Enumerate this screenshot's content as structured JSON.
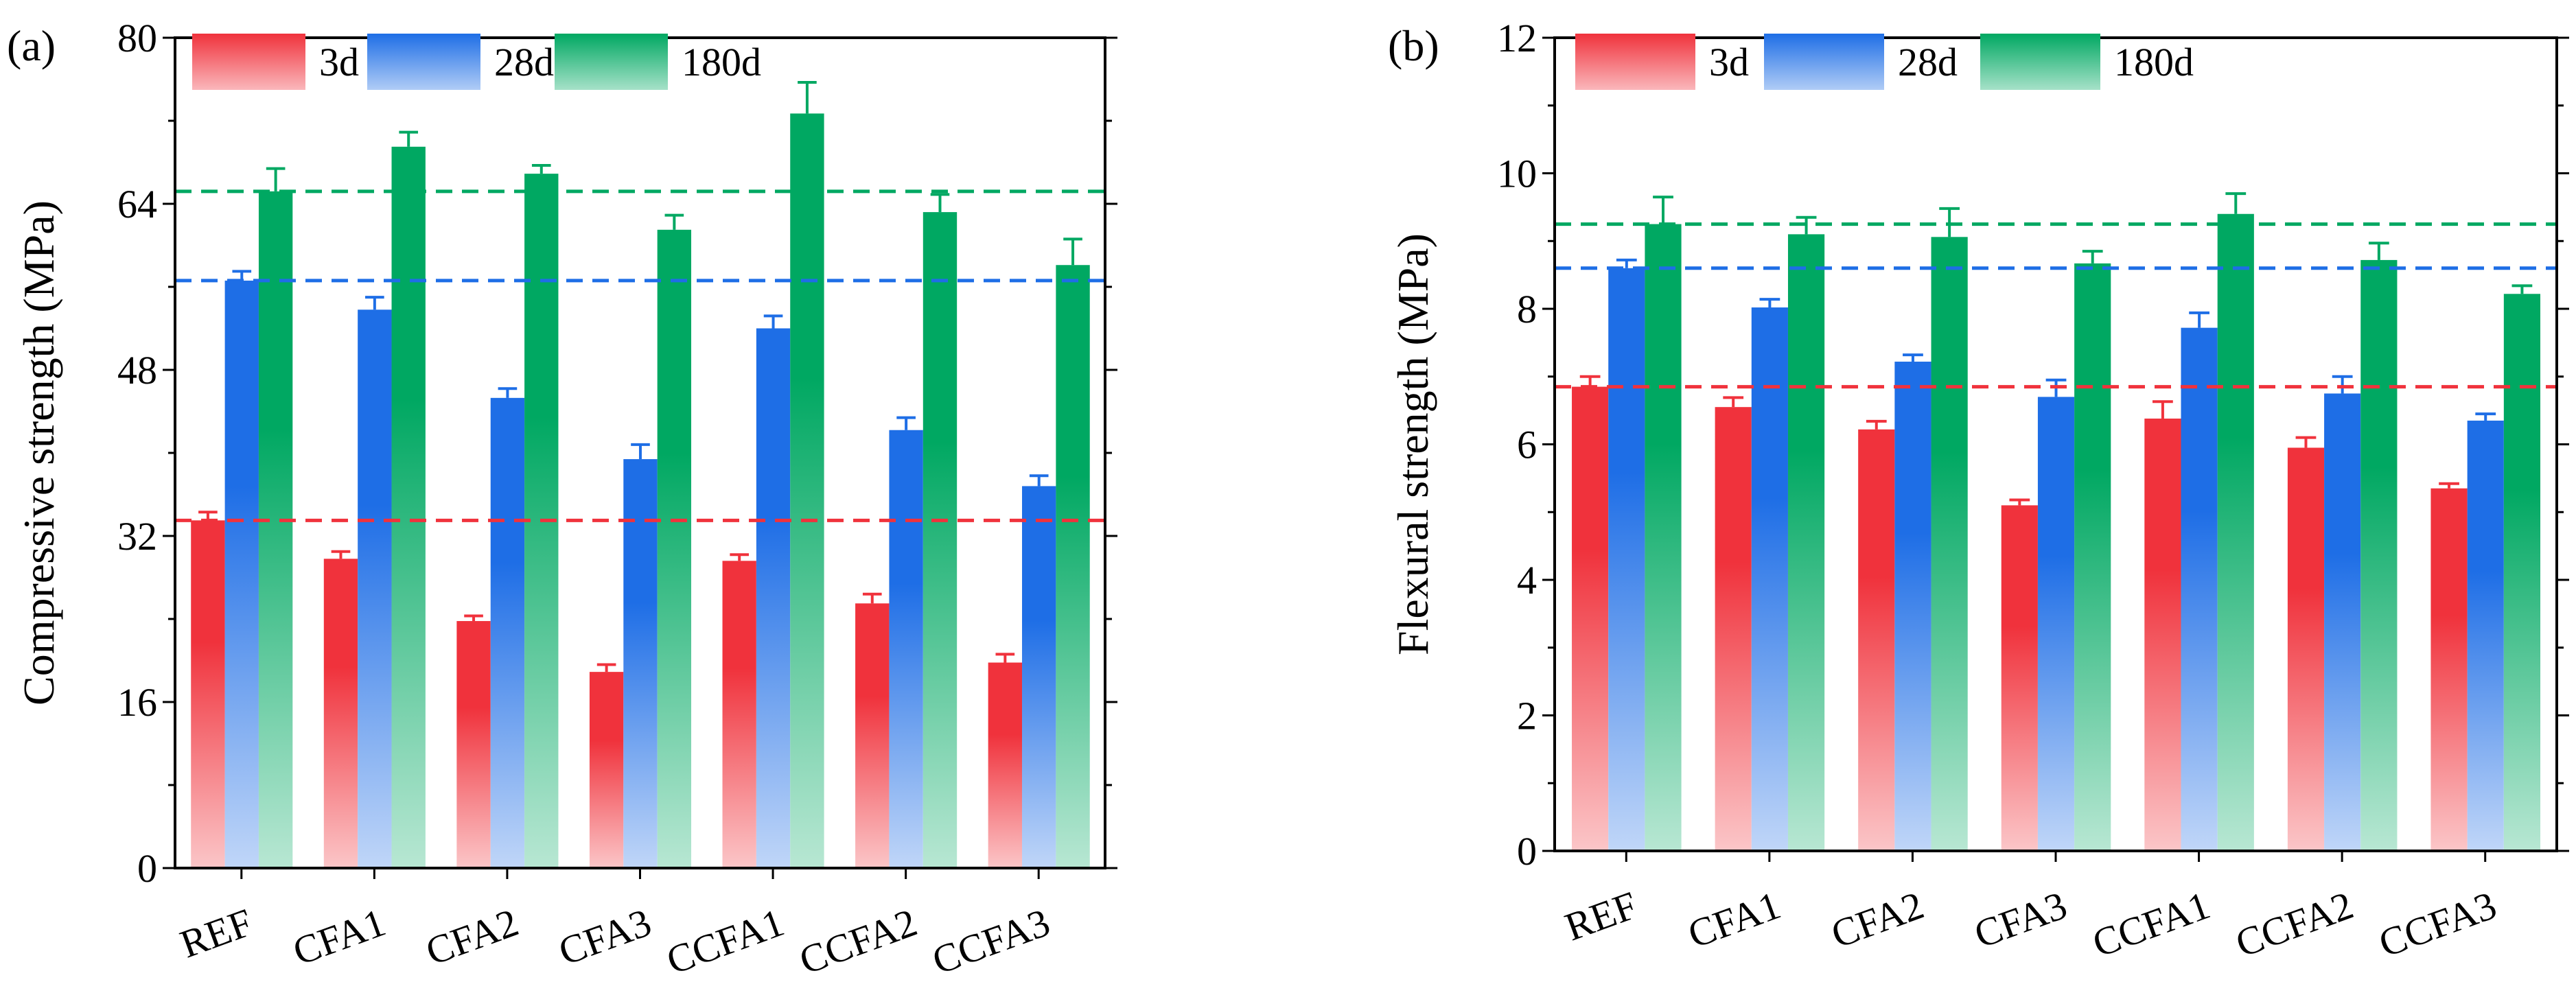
{
  "chart_data": [
    {
      "type": "bar",
      "panel_label": "(a)",
      "title": "",
      "xlabel": "",
      "ylabel": "Compressive strength (MPa)",
      "ylim": [
        0,
        80
      ],
      "yticks": [
        0,
        16,
        32,
        48,
        64,
        80
      ],
      "categories": [
        "REF",
        "CFA1",
        "CFA2",
        "CFA3",
        "CCFA1",
        "CCFA2",
        "CCFA3"
      ],
      "series": [
        {
          "name": "3d",
          "color": "#f0323c",
          "values": [
            33.5,
            29.8,
            23.8,
            18.9,
            29.6,
            25.5,
            19.8
          ],
          "errors": [
            0.8,
            0.7,
            0.5,
            0.7,
            0.6,
            0.9,
            0.8
          ]
        },
        {
          "name": "28d",
          "color": "#1e6ee6",
          "values": [
            56.6,
            53.8,
            45.3,
            39.4,
            52.0,
            42.2,
            36.8
          ],
          "errors": [
            0.9,
            1.2,
            0.9,
            1.4,
            1.2,
            1.2,
            1.0
          ]
        },
        {
          "name": "180d",
          "color": "#00a862",
          "values": [
            65.2,
            69.5,
            66.9,
            61.5,
            72.7,
            63.2,
            58.1
          ],
          "errors": [
            2.2,
            1.4,
            0.8,
            1.4,
            3.0,
            1.7,
            2.5
          ]
        }
      ],
      "reference_lines": [
        {
          "series": "3d",
          "value": 33.5
        },
        {
          "series": "28d",
          "value": 56.6
        },
        {
          "series": "180d",
          "value": 65.2
        }
      ],
      "legend": "top-left"
    },
    {
      "type": "bar",
      "panel_label": "(b)",
      "title": "",
      "xlabel": "",
      "ylabel": "Flexural strength (MPa)",
      "ylim": [
        0,
        12
      ],
      "yticks": [
        0,
        2,
        4,
        6,
        8,
        10,
        12
      ],
      "categories": [
        "REF",
        "CFA1",
        "CFA2",
        "CFA3",
        "CCFA1",
        "CCFA2",
        "CCFA3"
      ],
      "series": [
        {
          "name": "3d",
          "color": "#f0323c",
          "values": [
            6.85,
            6.55,
            6.22,
            5.1,
            6.38,
            5.95,
            5.35
          ],
          "errors": [
            0.15,
            0.14,
            0.12,
            0.08,
            0.25,
            0.15,
            0.07
          ]
        },
        {
          "name": "28d",
          "color": "#1e6ee6",
          "values": [
            8.6,
            8.02,
            7.22,
            6.7,
            7.72,
            6.75,
            6.35
          ],
          "errors": [
            0.12,
            0.12,
            0.1,
            0.25,
            0.22,
            0.25,
            0.1
          ]
        },
        {
          "name": "180d",
          "color": "#00a862",
          "values": [
            9.25,
            9.1,
            9.06,
            8.67,
            9.4,
            8.72,
            8.22
          ],
          "errors": [
            0.4,
            0.25,
            0.42,
            0.18,
            0.3,
            0.25,
            0.12
          ]
        }
      ],
      "reference_lines": [
        {
          "series": "3d",
          "value": 6.85
        },
        {
          "series": "28d",
          "value": 8.6
        },
        {
          "series": "180d",
          "value": 9.25
        }
      ],
      "legend": "top-left"
    }
  ]
}
